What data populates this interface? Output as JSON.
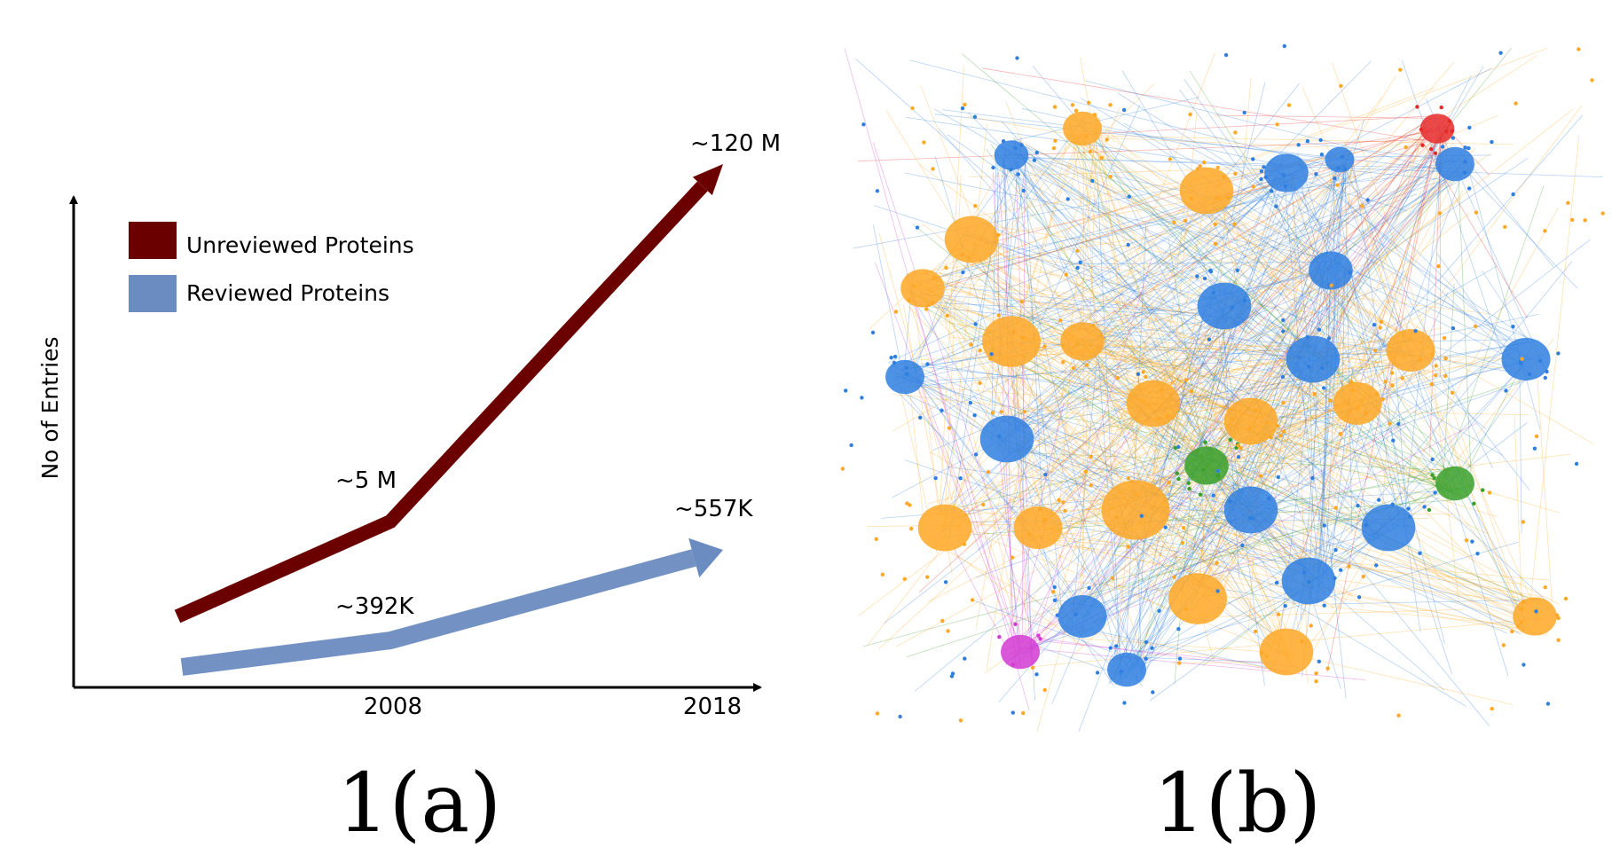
{
  "figure": {
    "caption_a": "1(a)",
    "caption_b": "1(b)"
  },
  "chart_data": [
    {
      "type": "line",
      "title": "",
      "xlabel": "",
      "ylabel": "No of Entries",
      "x": [
        "",
        "2008",
        "2018"
      ],
      "series": [
        {
          "name": "Unreviewed Proteins",
          "color": "#6b0000",
          "annotations": [
            "",
            "~5 M",
            "~120 M"
          ]
        },
        {
          "name": "Reviewed Proteins",
          "color": "#6b8cc0",
          "annotations": [
            "",
            "~392K",
            "~557K"
          ]
        }
      ],
      "legend_position": "top-left",
      "grid": false
    },
    {
      "type": "network",
      "colors": [
        "#ffa826",
        "#2f7fe0",
        "#3aa02a",
        "#e62a2a",
        "#d23ad2"
      ]
    }
  ]
}
